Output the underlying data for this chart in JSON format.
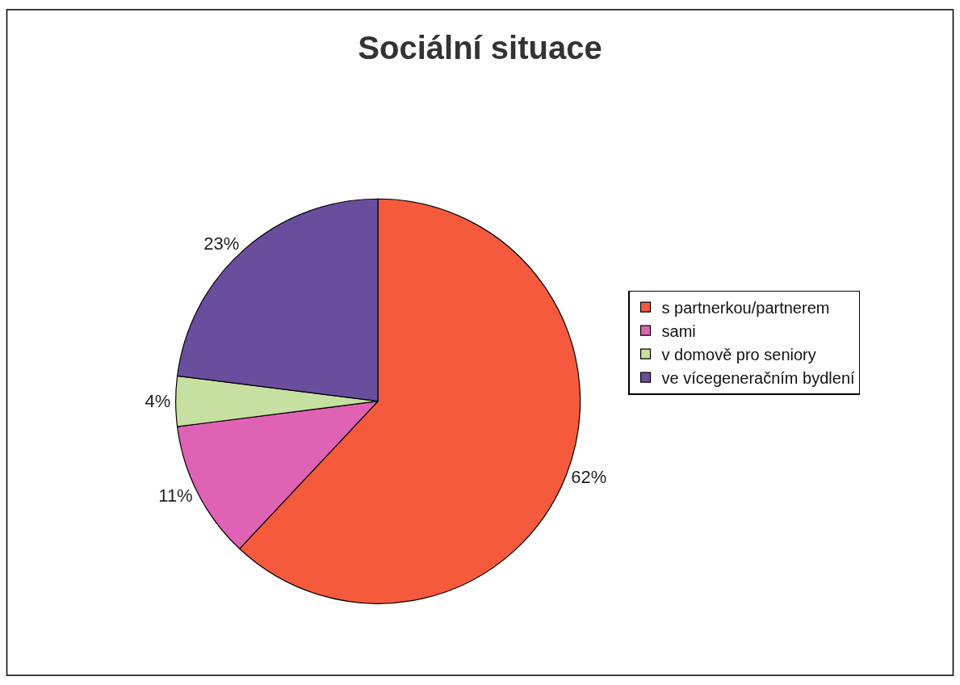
{
  "chart_data": {
    "type": "pie",
    "title": "Sociální situace",
    "categories": [
      "s partnerkou/partnerem",
      "sami",
      "v domově pro seniory",
      "ve vícegeneračním bydlení"
    ],
    "values": [
      62,
      11,
      4,
      23
    ],
    "value_labels": [
      "62%",
      "11%",
      "4%",
      "23%"
    ],
    "colors": [
      "#f65a3c",
      "#e062b4",
      "#c6e0a2",
      "#6a4e9e"
    ],
    "legend": "right"
  }
}
